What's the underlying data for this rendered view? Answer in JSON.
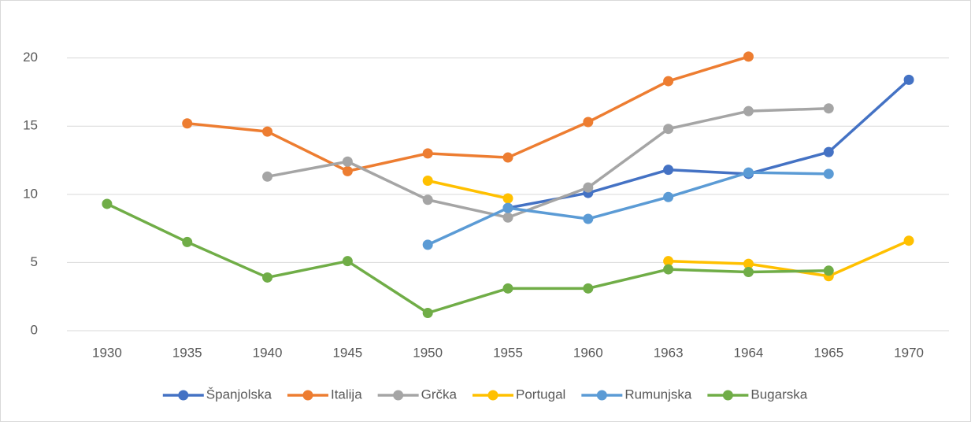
{
  "chart_data": {
    "type": "line",
    "categories": [
      "1930",
      "1935",
      "1940",
      "1945",
      "1950",
      "1955",
      "1960",
      "1963",
      "1964",
      "1965",
      "1970"
    ],
    "series": [
      {
        "name": "Španjolska",
        "color": "#4472c4",
        "values": [
          null,
          null,
          null,
          null,
          null,
          9.0,
          10.1,
          11.8,
          11.5,
          13.1,
          18.4
        ]
      },
      {
        "name": "Italija",
        "color": "#ed7d31",
        "values": [
          null,
          15.2,
          14.6,
          11.7,
          13.0,
          12.7,
          15.3,
          18.3,
          20.1,
          null,
          null
        ]
      },
      {
        "name": "Grčka",
        "color": "#a5a5a5",
        "values": [
          null,
          null,
          11.3,
          12.4,
          9.6,
          8.3,
          10.5,
          14.8,
          16.1,
          16.3,
          null
        ]
      },
      {
        "name": "Portugal",
        "color": "#ffc000",
        "values": [
          null,
          null,
          null,
          null,
          11.0,
          9.7,
          null,
          5.1,
          4.9,
          4.0,
          6.6
        ]
      },
      {
        "name": "Rumunjska",
        "color": "#5b9bd5",
        "values": [
          null,
          null,
          null,
          null,
          6.3,
          9.0,
          8.2,
          9.8,
          11.6,
          11.5,
          null
        ]
      },
      {
        "name": "Bugarska",
        "color": "#70ad47",
        "values": [
          9.3,
          6.5,
          3.9,
          5.1,
          1.3,
          3.1,
          3.1,
          4.5,
          4.3,
          4.4,
          null
        ]
      }
    ],
    "ylim": [
      0,
      22
    ],
    "yticks": [
      0,
      5,
      10,
      15,
      20
    ],
    "grid": true,
    "legend": "bottom"
  }
}
